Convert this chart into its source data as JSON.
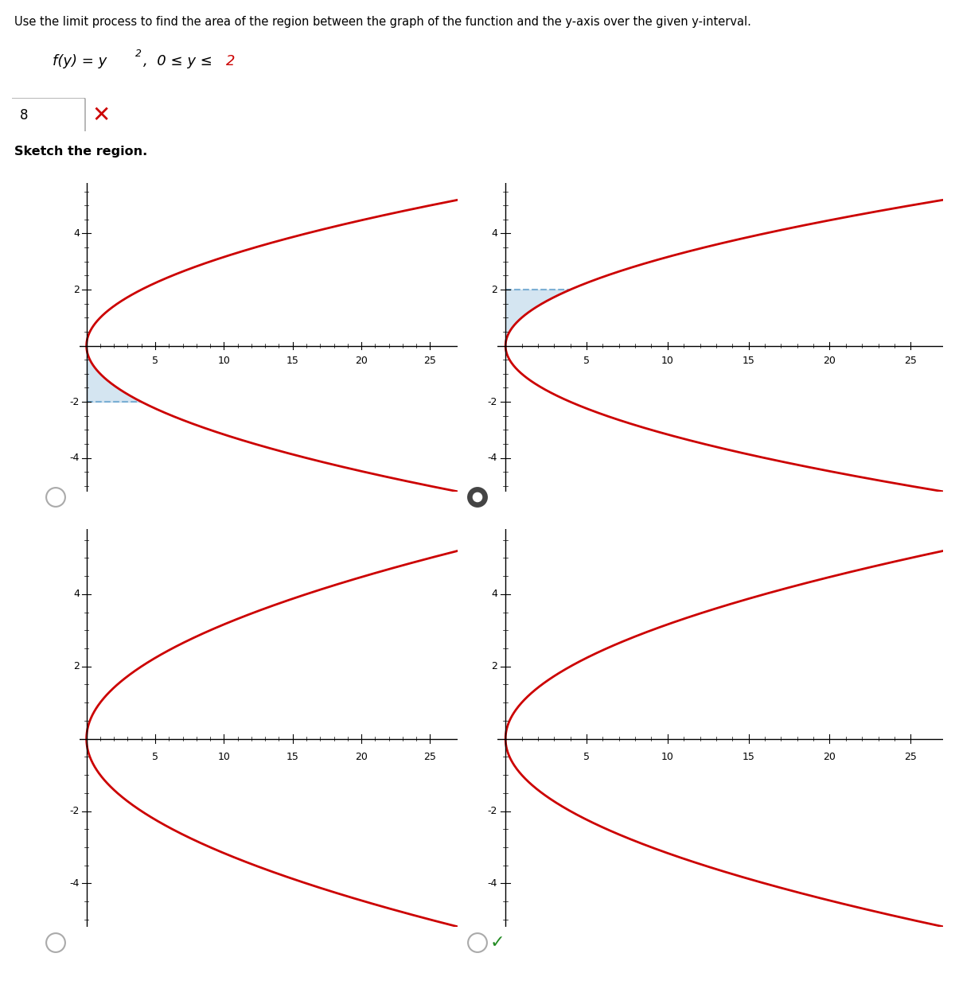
{
  "title_text": "Use the limit process to find the area of the region between the graph of the function and the y-axis over the given y-interval.",
  "function_label": "f(y) = y",
  "function_exp": "2",
  "function_range": ",  0 ≤ y ≤ ",
  "function_end": "2",
  "answer_value": "8",
  "sketch_label": "Sketch the region.",
  "curve_color": "#cc0000",
  "shade_color": "#b8d4e8",
  "shade_alpha": 0.6,
  "dashed_color": "#7bafd4",
  "plots": [
    {
      "shade_y_min": -2,
      "shade_y_max": 0,
      "dashed_y": -2,
      "has_shade": true,
      "radio_filled": false,
      "has_check": false
    },
    {
      "shade_y_min": 0,
      "shade_y_max": 2,
      "dashed_y": 2,
      "has_shade": true,
      "radio_filled": true,
      "has_check": false
    },
    {
      "shade_y_min": 0,
      "shade_y_max": 0,
      "dashed_y": null,
      "has_shade": false,
      "radio_filled": false,
      "has_check": false
    },
    {
      "shade_y_min": 0,
      "shade_y_max": 0,
      "dashed_y": null,
      "has_shade": false,
      "radio_filled": false,
      "has_check": true
    }
  ],
  "xlim": [
    -0.5,
    27
  ],
  "ylim": [
    -5.2,
    5.8
  ],
  "xticks": [
    5,
    10,
    15,
    20,
    25
  ],
  "yticks": [
    -4,
    -2,
    2,
    4
  ],
  "curve_y_min": -5.2,
  "curve_y_max": 5.8,
  "bg_color": "#ffffff",
  "fig_width": 12.0,
  "fig_height": 12.57
}
